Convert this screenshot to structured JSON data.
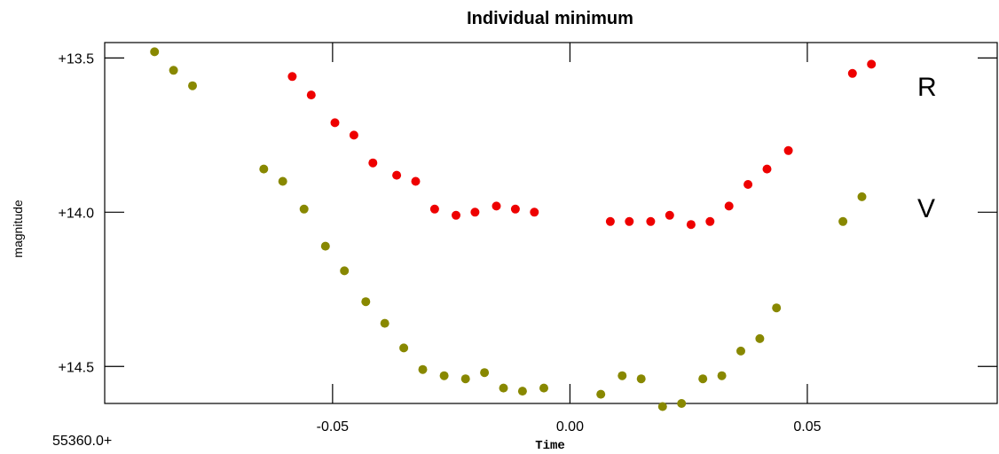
{
  "chart_data": {
    "type": "scatter",
    "title": "Individual minimum",
    "xlabel": "Time",
    "ylabel": "magnitude",
    "x_offset_label": "55360.0+",
    "xlim": [
      -0.098,
      0.09
    ],
    "ylim": [
      13.45,
      14.62
    ],
    "y_inverted": true,
    "x_ticks": [
      -0.05,
      0.0,
      0.05
    ],
    "x_tick_labels": [
      "-0.05",
      "0.00",
      "0.05"
    ],
    "y_ticks": [
      13.5,
      14.0,
      14.5
    ],
    "y_tick_labels": [
      "+13.5",
      "+14.0",
      "+14.5"
    ],
    "grid": false,
    "series": [
      {
        "name": "R",
        "color": "#ee0000",
        "points": [
          [
            -0.0585,
            13.56
          ],
          [
            -0.0545,
            13.62
          ],
          [
            -0.0495,
            13.71
          ],
          [
            -0.0455,
            13.75
          ],
          [
            -0.0415,
            13.84
          ],
          [
            -0.0365,
            13.88
          ],
          [
            -0.0325,
            13.9
          ],
          [
            -0.0285,
            13.99
          ],
          [
            -0.024,
            14.01
          ],
          [
            -0.02,
            14.0
          ],
          [
            -0.0155,
            13.98
          ],
          [
            -0.0115,
            13.99
          ],
          [
            -0.0075,
            14.0
          ],
          [
            0.0085,
            14.03
          ],
          [
            0.0125,
            14.03
          ],
          [
            0.017,
            14.03
          ],
          [
            0.021,
            14.01
          ],
          [
            0.0255,
            14.04
          ],
          [
            0.0295,
            14.03
          ],
          [
            0.0335,
            13.98
          ],
          [
            0.0375,
            13.91
          ],
          [
            0.0415,
            13.86
          ],
          [
            0.046,
            13.8
          ],
          [
            0.0595,
            13.55
          ],
          [
            0.0635,
            13.52
          ]
        ]
      },
      {
        "name": "V",
        "color": "#888800",
        "points": [
          [
            -0.0875,
            13.48
          ],
          [
            -0.0835,
            13.54
          ],
          [
            -0.0795,
            13.59
          ],
          [
            -0.0645,
            13.86
          ],
          [
            -0.0605,
            13.9
          ],
          [
            -0.056,
            13.99
          ],
          [
            -0.0515,
            14.11
          ],
          [
            -0.0475,
            14.19
          ],
          [
            -0.043,
            14.29
          ],
          [
            -0.039,
            14.36
          ],
          [
            -0.035,
            14.44
          ],
          [
            -0.031,
            14.51
          ],
          [
            -0.0265,
            14.53
          ],
          [
            -0.022,
            14.54
          ],
          [
            -0.018,
            14.52
          ],
          [
            -0.014,
            14.57
          ],
          [
            -0.01,
            14.58
          ],
          [
            -0.0055,
            14.57
          ],
          [
            0.0065,
            14.59
          ],
          [
            0.011,
            14.53
          ],
          [
            0.015,
            14.54
          ],
          [
            0.0195,
            14.63
          ],
          [
            0.0235,
            14.62
          ],
          [
            0.028,
            14.54
          ],
          [
            0.032,
            14.53
          ],
          [
            0.036,
            14.45
          ],
          [
            0.04,
            14.41
          ],
          [
            0.0435,
            14.31
          ],
          [
            0.0575,
            14.03
          ],
          [
            0.0615,
            13.95
          ]
        ]
      }
    ]
  }
}
